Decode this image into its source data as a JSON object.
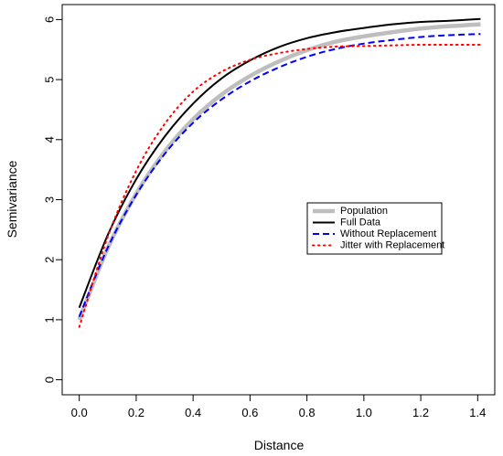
{
  "chart_data": {
    "type": "line",
    "title": "",
    "xlabel": "Distance",
    "ylabel": "Semivariance",
    "xlim": [
      -0.06,
      1.46
    ],
    "ylim": [
      -0.25,
      6.25
    ],
    "x_ticks": [
      0.0,
      0.2,
      0.4,
      0.6,
      0.8,
      1.0,
      1.2,
      1.4
    ],
    "x_tick_labels": [
      "0.0",
      "0.2",
      "0.4",
      "0.6",
      "0.8",
      "1.0",
      "1.2",
      "1.4"
    ],
    "y_ticks": [
      0,
      1,
      2,
      3,
      4,
      5,
      6
    ],
    "y_tick_labels": [
      "0",
      "1",
      "2",
      "3",
      "4",
      "5",
      "6"
    ],
    "grid": false,
    "legend_position": "right",
    "series": [
      {
        "name": "Population",
        "color": "#bebebe",
        "style": "solid-thick",
        "x": [
          0.0,
          0.1,
          0.2,
          0.3,
          0.4,
          0.5,
          0.6,
          0.7,
          0.8,
          0.9,
          1.0,
          1.1,
          1.2,
          1.3,
          1.41
        ],
        "y": [
          1.0,
          2.19,
          3.1,
          3.8,
          4.34,
          4.75,
          5.06,
          5.3,
          5.49,
          5.63,
          5.72,
          5.79,
          5.85,
          5.89,
          5.92
        ]
      },
      {
        "name": "Full Data",
        "color": "#000000",
        "style": "solid",
        "x": [
          0.0,
          0.1,
          0.2,
          0.3,
          0.4,
          0.5,
          0.6,
          0.7,
          0.8,
          0.9,
          1.0,
          1.1,
          1.2,
          1.3,
          1.41
        ],
        "y": [
          1.2,
          2.41,
          3.34,
          4.05,
          4.6,
          5.02,
          5.32,
          5.54,
          5.69,
          5.79,
          5.86,
          5.92,
          5.96,
          5.98,
          6.01
        ]
      },
      {
        "name": "Without Replacement",
        "color": "#0000ff",
        "style": "dashed",
        "x": [
          0.0,
          0.1,
          0.2,
          0.3,
          0.4,
          0.5,
          0.6,
          0.7,
          0.8,
          0.9,
          1.0,
          1.1,
          1.2,
          1.3,
          1.41
        ],
        "y": [
          1.05,
          2.2,
          3.08,
          3.76,
          4.28,
          4.67,
          4.97,
          5.2,
          5.38,
          5.51,
          5.6,
          5.66,
          5.71,
          5.74,
          5.76
        ]
      },
      {
        "name": "Jitter with Replacement",
        "color": "#ff0000",
        "style": "dotted",
        "x": [
          0.0,
          0.1,
          0.2,
          0.3,
          0.4,
          0.5,
          0.6,
          0.7,
          0.8,
          0.9,
          1.0,
          1.1,
          1.2,
          1.3,
          1.41
        ],
        "y": [
          0.88,
          2.38,
          3.48,
          4.26,
          4.8,
          5.13,
          5.33,
          5.44,
          5.51,
          5.55,
          5.56,
          5.57,
          5.58,
          5.58,
          5.58
        ]
      }
    ]
  }
}
